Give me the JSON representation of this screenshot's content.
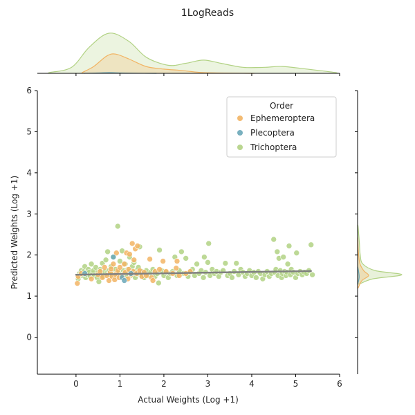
{
  "chart_data": {
    "type": "scatter",
    "title": "1LogReads",
    "xlabel": "Actual Weights (Log +1)",
    "ylabel": "Predicted Weights (Log +1)",
    "xlim": [
      -0.88,
      6
    ],
    "ylim": [
      -0.9,
      6
    ],
    "xticks": [
      "0",
      "1",
      "2",
      "3",
      "4",
      "5",
      "6"
    ],
    "xtick_values": [
      0,
      1,
      2,
      3,
      4,
      5,
      6
    ],
    "yticks": [
      "0",
      "1",
      "2",
      "3",
      "4",
      "5",
      "6"
    ],
    "ytick_values": [
      0,
      1,
      2,
      3,
      4,
      5,
      6
    ],
    "grid": false,
    "legend": {
      "title": "Order",
      "position": "top-right"
    },
    "series": [
      {
        "name": "Ephemeroptera",
        "color": "#f2b464",
        "points": [
          [
            0.03,
            1.31
          ],
          [
            0.05,
            1.48
          ],
          [
            0.12,
            1.55
          ],
          [
            0.35,
            1.42
          ],
          [
            0.5,
            1.52
          ],
          [
            0.55,
            1.6
          ],
          [
            0.6,
            1.45
          ],
          [
            0.65,
            1.7
          ],
          [
            0.7,
            1.5
          ],
          [
            0.75,
            1.38
          ],
          [
            0.78,
            1.58
          ],
          [
            0.8,
            1.66
          ],
          [
            0.82,
            1.48
          ],
          [
            0.85,
            1.78
          ],
          [
            0.88,
            1.4
          ],
          [
            0.9,
            1.52
          ],
          [
            0.92,
            2.05
          ],
          [
            0.95,
            1.62
          ],
          [
            0.98,
            1.45
          ],
          [
            1.0,
            1.7
          ],
          [
            1.05,
            1.5
          ],
          [
            1.1,
            1.78
          ],
          [
            1.12,
            1.58
          ],
          [
            1.15,
            2.05
          ],
          [
            1.18,
            1.42
          ],
          [
            1.2,
            1.65
          ],
          [
            1.22,
            2.02
          ],
          [
            1.25,
            1.52
          ],
          [
            1.28,
            2.28
          ],
          [
            1.3,
            1.6
          ],
          [
            1.32,
            1.88
          ],
          [
            1.35,
            2.15
          ],
          [
            1.38,
            1.55
          ],
          [
            1.4,
            2.22
          ],
          [
            1.45,
            1.62
          ],
          [
            1.5,
            1.48
          ],
          [
            1.55,
            1.58
          ],
          [
            1.6,
            1.5
          ],
          [
            1.68,
            1.9
          ],
          [
            1.72,
            1.45
          ],
          [
            1.75,
            1.38
          ],
          [
            1.8,
            1.6
          ],
          [
            1.9,
            1.65
          ],
          [
            1.98,
            1.85
          ],
          [
            2.05,
            1.6
          ],
          [
            2.2,
            1.55
          ],
          [
            2.28,
            1.68
          ],
          [
            2.3,
            1.85
          ],
          [
            2.35,
            1.5
          ],
          [
            2.5,
            1.55
          ],
          [
            2.6,
            1.6
          ]
        ]
      },
      {
        "name": "Plecoptera",
        "color": "#6aa7b8",
        "points": [
          [
            0.2,
            1.55
          ],
          [
            0.85,
            1.95
          ],
          [
            1.05,
            1.45
          ],
          [
            1.1,
            1.38
          ],
          [
            1.25,
            1.55
          ]
        ]
      },
      {
        "name": "Trichoptera",
        "color": "#b2d284",
        "points": [
          [
            0.05,
            1.42
          ],
          [
            0.08,
            1.55
          ],
          [
            0.12,
            1.62
          ],
          [
            0.15,
            1.5
          ],
          [
            0.18,
            1.6
          ],
          [
            0.2,
            1.72
          ],
          [
            0.22,
            1.45
          ],
          [
            0.25,
            1.52
          ],
          [
            0.28,
            1.65
          ],
          [
            0.3,
            1.58
          ],
          [
            0.32,
            1.48
          ],
          [
            0.35,
            1.78
          ],
          [
            0.38,
            1.55
          ],
          [
            0.4,
            1.62
          ],
          [
            0.42,
            1.5
          ],
          [
            0.45,
            1.7
          ],
          [
            0.48,
            1.45
          ],
          [
            0.5,
            1.58
          ],
          [
            0.52,
            1.35
          ],
          [
            0.55,
            1.65
          ],
          [
            0.58,
            1.52
          ],
          [
            0.6,
            1.8
          ],
          [
            0.62,
            1.48
          ],
          [
            0.65,
            1.6
          ],
          [
            0.68,
            1.88
          ],
          [
            0.7,
            1.55
          ],
          [
            0.72,
            2.08
          ],
          [
            0.75,
            1.62
          ],
          [
            0.78,
            1.5
          ],
          [
            0.8,
            1.72
          ],
          [
            0.82,
            1.58
          ],
          [
            0.85,
            1.95
          ],
          [
            0.88,
            1.48
          ],
          [
            0.9,
            1.65
          ],
          [
            0.92,
            1.55
          ],
          [
            0.95,
            2.7
          ],
          [
            0.98,
            1.6
          ],
          [
            1.0,
            1.85
          ],
          [
            1.02,
            1.5
          ],
          [
            1.05,
            2.1
          ],
          [
            1.08,
            1.62
          ],
          [
            1.1,
            1.55
          ],
          [
            1.12,
            1.78
          ],
          [
            1.15,
            1.48
          ],
          [
            1.18,
            1.65
          ],
          [
            1.2,
            1.6
          ],
          [
            1.22,
            1.95
          ],
          [
            1.25,
            1.5
          ],
          [
            1.28,
            1.72
          ],
          [
            1.3,
            1.58
          ],
          [
            1.32,
            1.82
          ],
          [
            1.35,
            1.45
          ],
          [
            1.38,
            1.62
          ],
          [
            1.4,
            1.55
          ],
          [
            1.42,
            1.7
          ],
          [
            1.45,
            2.2
          ],
          [
            1.48,
            1.5
          ],
          [
            1.5,
            1.6
          ],
          [
            1.55,
            1.45
          ],
          [
            1.58,
            1.55
          ],
          [
            1.6,
            1.62
          ],
          [
            1.65,
            1.5
          ],
          [
            1.7,
            1.58
          ],
          [
            1.75,
            1.65
          ],
          [
            1.8,
            1.48
          ],
          [
            1.85,
            1.55
          ],
          [
            1.88,
            1.32
          ],
          [
            1.9,
            2.12
          ],
          [
            1.95,
            1.62
          ],
          [
            2.0,
            1.5
          ],
          [
            2.05,
            1.58
          ],
          [
            2.1,
            1.45
          ],
          [
            2.15,
            1.55
          ],
          [
            2.2,
            1.6
          ],
          [
            2.25,
            1.95
          ],
          [
            2.3,
            1.5
          ],
          [
            2.35,
            1.62
          ],
          [
            2.4,
            2.08
          ],
          [
            2.45,
            1.55
          ],
          [
            2.5,
            1.92
          ],
          [
            2.55,
            1.48
          ],
          [
            2.6,
            1.58
          ],
          [
            2.65,
            1.65
          ],
          [
            2.7,
            1.5
          ],
          [
            2.75,
            1.78
          ],
          [
            2.8,
            1.55
          ],
          [
            2.85,
            1.62
          ],
          [
            2.9,
            1.45
          ],
          [
            2.92,
            1.95
          ],
          [
            2.95,
            1.58
          ],
          [
            3.0,
            1.82
          ],
          [
            3.02,
            2.28
          ],
          [
            3.05,
            1.5
          ],
          [
            3.1,
            1.65
          ],
          [
            3.15,
            1.55
          ],
          [
            3.2,
            1.6
          ],
          [
            3.25,
            1.48
          ],
          [
            3.3,
            1.58
          ],
          [
            3.35,
            1.62
          ],
          [
            3.4,
            1.8
          ],
          [
            3.45,
            1.5
          ],
          [
            3.5,
            1.55
          ],
          [
            3.55,
            1.45
          ],
          [
            3.6,
            1.6
          ],
          [
            3.65,
            1.8
          ],
          [
            3.7,
            1.52
          ],
          [
            3.75,
            1.65
          ],
          [
            3.8,
            1.58
          ],
          [
            3.85,
            1.48
          ],
          [
            3.9,
            1.55
          ],
          [
            3.95,
            1.62
          ],
          [
            4.0,
            1.5
          ],
          [
            4.05,
            1.58
          ],
          [
            4.1,
            1.45
          ],
          [
            4.15,
            1.6
          ],
          [
            4.2,
            1.55
          ],
          [
            4.25,
            1.42
          ],
          [
            4.3,
            1.52
          ],
          [
            4.35,
            1.6
          ],
          [
            4.4,
            1.48
          ],
          [
            4.45,
            1.55
          ],
          [
            4.5,
            2.38
          ],
          [
            4.52,
            1.58
          ],
          [
            4.55,
            1.65
          ],
          [
            4.58,
            2.08
          ],
          [
            4.6,
            1.5
          ],
          [
            4.62,
            1.92
          ],
          [
            4.65,
            1.62
          ],
          [
            4.68,
            1.45
          ],
          [
            4.7,
            1.55
          ],
          [
            4.72,
            1.95
          ],
          [
            4.75,
            1.6
          ],
          [
            4.78,
            1.5
          ],
          [
            4.8,
            1.58
          ],
          [
            4.82,
            1.78
          ],
          [
            4.85,
            2.22
          ],
          [
            4.88,
            1.52
          ],
          [
            4.9,
            1.65
          ],
          [
            4.95,
            1.58
          ],
          [
            5.0,
            1.45
          ],
          [
            5.02,
            2.05
          ],
          [
            5.05,
            1.55
          ],
          [
            5.1,
            1.6
          ],
          [
            5.15,
            1.52
          ],
          [
            5.2,
            1.58
          ],
          [
            5.25,
            1.55
          ],
          [
            5.3,
            1.62
          ],
          [
            5.35,
            2.25
          ],
          [
            5.38,
            1.52
          ]
        ]
      }
    ],
    "regression": {
      "color": "#808080",
      "x": [
        0,
        5.35
      ],
      "y": [
        1.52,
        1.61
      ]
    },
    "marginal_x": {
      "Ephemeroptera": [
        [
          0.15,
          0.05
        ],
        [
          0.4,
          0.35
        ],
        [
          0.7,
          0.9
        ],
        [
          0.9,
          1.0
        ],
        [
          1.2,
          0.75
        ],
        [
          1.6,
          0.35
        ],
        [
          2.0,
          0.22
        ],
        [
          2.4,
          0.15
        ],
        [
          2.8,
          0.05
        ],
        [
          3.2,
          0.02
        ],
        [
          4.0,
          0.0
        ]
      ],
      "Plecoptera": [
        [
          0.2,
          0.02
        ],
        [
          0.5,
          0.08
        ],
        [
          0.75,
          0.18
        ],
        [
          1.0,
          0.1
        ],
        [
          1.4,
          0.02
        ],
        [
          1.8,
          0.0
        ]
      ],
      "Trichoptera": [
        [
          -0.6,
          0.02
        ],
        [
          -0.1,
          0.15
        ],
        [
          0.3,
          0.65
        ],
        [
          0.75,
          1.0
        ],
        [
          1.2,
          0.8
        ],
        [
          1.6,
          0.4
        ],
        [
          2.1,
          0.2
        ],
        [
          2.5,
          0.25
        ],
        [
          2.9,
          0.33
        ],
        [
          3.3,
          0.25
        ],
        [
          3.8,
          0.15
        ],
        [
          4.3,
          0.15
        ],
        [
          4.7,
          0.17
        ],
        [
          5.3,
          0.1
        ],
        [
          5.9,
          0.02
        ]
      ]
    },
    "marginal_y": {
      "Ephemeroptera": [
        [
          1.2,
          0.05
        ],
        [
          1.38,
          0.4
        ],
        [
          1.5,
          1.0
        ],
        [
          1.62,
          0.55
        ],
        [
          1.8,
          0.2
        ],
        [
          2.1,
          0.07
        ],
        [
          2.4,
          0.02
        ]
      ],
      "Plecoptera": [
        [
          1.3,
          0.05
        ],
        [
          1.45,
          0.3
        ],
        [
          1.55,
          0.25
        ],
        [
          1.7,
          0.05
        ]
      ],
      "Trichoptera": [
        [
          1.3,
          0.05
        ],
        [
          1.42,
          0.35
        ],
        [
          1.52,
          1.0
        ],
        [
          1.62,
          0.4
        ],
        [
          1.78,
          0.12
        ],
        [
          2.0,
          0.06
        ],
        [
          2.3,
          0.04
        ],
        [
          2.7,
          0.01
        ]
      ]
    }
  }
}
